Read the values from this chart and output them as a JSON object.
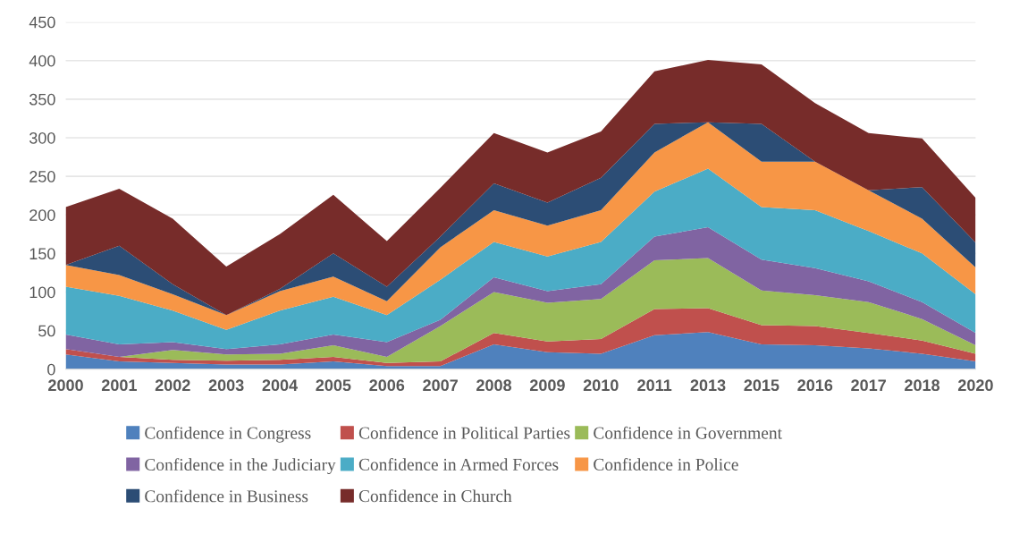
{
  "chart_data": {
    "type": "area",
    "stacked": true,
    "categories": [
      "2000",
      "2001",
      "2002",
      "2003",
      "2004",
      "2005",
      "2006",
      "2007",
      "2008",
      "2009",
      "2010",
      "2011",
      "2013",
      "2015",
      "2016",
      "2017",
      "2018",
      "2020"
    ],
    "ylim": [
      0,
      450
    ],
    "yticks": [
      0,
      50,
      100,
      150,
      200,
      250,
      300,
      350,
      400,
      450
    ],
    "grid": "y",
    "legend": "bottom",
    "series": [
      {
        "name": "Confidence in Congress",
        "color": "#4f81bd",
        "values": [
          19,
          10,
          8,
          6,
          6,
          10,
          4,
          4,
          32,
          22,
          20,
          44,
          48,
          32,
          31,
          27,
          20,
          10
        ]
      },
      {
        "name": "Confidence in Political Parties",
        "color": "#c0504d",
        "values": [
          7,
          6,
          4,
          5,
          6,
          6,
          4,
          6,
          15,
          14,
          19,
          34,
          31,
          25,
          25,
          20,
          17,
          10
        ]
      },
      {
        "name": "Confidence in Government",
        "color": "#9bbb59",
        "values": [
          0,
          0,
          13,
          8,
          8,
          15,
          8,
          46,
          53,
          50,
          52,
          63,
          65,
          45,
          40,
          40,
          28,
          11
        ]
      },
      {
        "name": "Confidence in the Judiciary",
        "color": "#8064a2",
        "values": [
          19,
          16,
          10,
          7,
          12,
          14,
          19,
          8,
          19,
          15,
          19,
          31,
          40,
          40,
          35,
          27,
          22,
          16
        ]
      },
      {
        "name": "Confidence in Armed Forces",
        "color": "#4bacc6",
        "values": [
          62,
          63,
          41,
          25,
          44,
          49,
          35,
          52,
          46,
          45,
          55,
          58,
          76,
          68,
          75,
          65,
          63,
          50
        ]
      },
      {
        "name": "Confidence in Police",
        "color": "#f79646",
        "values": [
          28,
          27,
          21,
          19,
          25,
          26,
          18,
          42,
          41,
          40,
          41,
          51,
          60,
          59,
          63,
          53,
          45,
          35
        ]
      },
      {
        "name": "Confidence in Business",
        "color": "#2c4d75",
        "values": [
          0,
          38,
          13,
          0,
          3,
          30,
          19,
          14,
          35,
          30,
          42,
          37,
          0,
          49,
          0,
          0,
          41,
          32
        ]
      },
      {
        "name": "Confidence in Church",
        "color": "#772c2a",
        "values": [
          75,
          74,
          85,
          63,
          71,
          76,
          59,
          63,
          65,
          65,
          60,
          68,
          81,
          77,
          76,
          74,
          63,
          58
        ]
      }
    ]
  }
}
